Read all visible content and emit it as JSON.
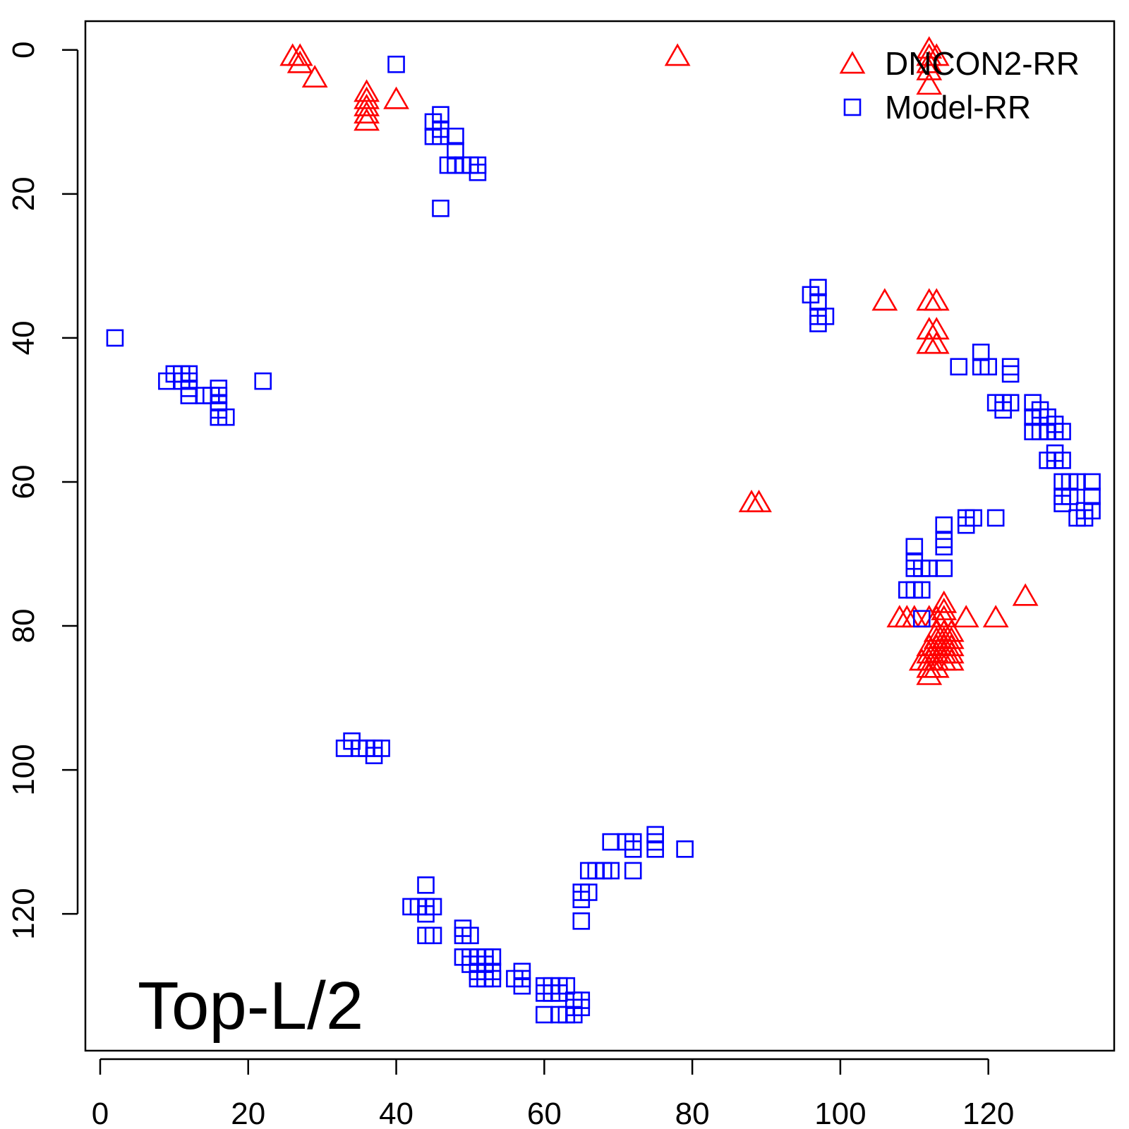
{
  "chart_data": {
    "type": "scatter",
    "title": "",
    "xlabel": "",
    "ylabel": "",
    "annotation": "Top-L/2",
    "xlim": [
      -2,
      137
    ],
    "ylim": [
      -4,
      139
    ],
    "y_reversed": true,
    "x_ticks": [
      0,
      20,
      40,
      60,
      80,
      100,
      120
    ],
    "y_ticks": [
      0,
      20,
      40,
      60,
      80,
      100,
      120
    ],
    "grid": false,
    "legend_position": "top-right",
    "series": [
      {
        "name": "DNCON2-RR",
        "marker": "triangle-open",
        "color": "#ff0000",
        "points": [
          [
            26,
            1
          ],
          [
            27,
            1
          ],
          [
            27,
            2
          ],
          [
            29,
            4
          ],
          [
            36,
            6
          ],
          [
            36,
            7
          ],
          [
            36,
            8
          ],
          [
            36,
            9
          ],
          [
            36,
            10
          ],
          [
            40,
            7
          ],
          [
            78,
            1
          ],
          [
            112,
            0
          ],
          [
            112,
            1
          ],
          [
            113,
            1
          ],
          [
            112,
            2
          ],
          [
            112,
            3
          ],
          [
            112,
            5
          ],
          [
            106,
            35
          ],
          [
            112,
            35
          ],
          [
            113,
            35
          ],
          [
            112,
            39
          ],
          [
            113,
            39
          ],
          [
            112,
            41
          ],
          [
            113,
            41
          ],
          [
            88,
            63
          ],
          [
            89,
            63
          ],
          [
            125,
            76
          ],
          [
            108,
            79
          ],
          [
            109,
            79
          ],
          [
            110,
            79
          ],
          [
            112,
            79
          ],
          [
            113,
            79
          ],
          [
            114,
            79
          ],
          [
            117,
            79
          ],
          [
            121,
            79
          ],
          [
            114,
            77
          ],
          [
            114,
            78
          ],
          [
            113,
            81
          ],
          [
            114,
            81
          ],
          [
            115,
            81
          ],
          [
            113,
            82
          ],
          [
            114,
            82
          ],
          [
            115,
            82
          ],
          [
            112,
            83
          ],
          [
            113,
            83
          ],
          [
            114,
            83
          ],
          [
            115,
            83
          ],
          [
            112,
            84
          ],
          [
            113,
            84
          ],
          [
            114,
            84
          ],
          [
            115,
            84
          ],
          [
            111,
            85
          ],
          [
            112,
            85
          ],
          [
            113,
            85
          ],
          [
            114,
            85
          ],
          [
            115,
            85
          ],
          [
            112,
            86
          ],
          [
            113,
            86
          ],
          [
            112,
            87
          ]
        ]
      },
      {
        "name": "Model-RR",
        "marker": "square-open",
        "color": "#0000ff",
        "points": [
          [
            40,
            2
          ],
          [
            45,
            10
          ],
          [
            46,
            9
          ],
          [
            46,
            11
          ],
          [
            45,
            12
          ],
          [
            46,
            12
          ],
          [
            48,
            12
          ],
          [
            48,
            14
          ],
          [
            47,
            16
          ],
          [
            48,
            16
          ],
          [
            49,
            16
          ],
          [
            50,
            16
          ],
          [
            51,
            16
          ],
          [
            51,
            17
          ],
          [
            46,
            22
          ],
          [
            2,
            40
          ],
          [
            9,
            46
          ],
          [
            10,
            45
          ],
          [
            11,
            45
          ],
          [
            11,
            46
          ],
          [
            12,
            45
          ],
          [
            12,
            46
          ],
          [
            12,
            47
          ],
          [
            12,
            48
          ],
          [
            14,
            48
          ],
          [
            15,
            48
          ],
          [
            16,
            47
          ],
          [
            16,
            48
          ],
          [
            16,
            49
          ],
          [
            16,
            50
          ],
          [
            16,
            51
          ],
          [
            17,
            51
          ],
          [
            22,
            46
          ],
          [
            96,
            34
          ],
          [
            97,
            33
          ],
          [
            97,
            35
          ],
          [
            97,
            37
          ],
          [
            97,
            38
          ],
          [
            98,
            37
          ],
          [
            116,
            44
          ],
          [
            119,
            42
          ],
          [
            119,
            44
          ],
          [
            120,
            44
          ],
          [
            123,
            44
          ],
          [
            123,
            45
          ],
          [
            121,
            49
          ],
          [
            122,
            49
          ],
          [
            123,
            49
          ],
          [
            122,
            50
          ],
          [
            126,
            49
          ],
          [
            126,
            51
          ],
          [
            126,
            53
          ],
          [
            127,
            50
          ],
          [
            127,
            51
          ],
          [
            127,
            53
          ],
          [
            128,
            51
          ],
          [
            128,
            53
          ],
          [
            129,
            52
          ],
          [
            129,
            53
          ],
          [
            130,
            53
          ],
          [
            128,
            57
          ],
          [
            129,
            56
          ],
          [
            129,
            57
          ],
          [
            130,
            57
          ],
          [
            130,
            60
          ],
          [
            131,
            60
          ],
          [
            130,
            62
          ],
          [
            130,
            63
          ],
          [
            131,
            62
          ],
          [
            132,
            60
          ],
          [
            134,
            60
          ],
          [
            134,
            62
          ],
          [
            134,
            64
          ],
          [
            133,
            64
          ],
          [
            133,
            65
          ],
          [
            132,
            65
          ],
          [
            114,
            66
          ],
          [
            114,
            68
          ],
          [
            114,
            69
          ],
          [
            114,
            72
          ],
          [
            117,
            65
          ],
          [
            117,
            66
          ],
          [
            118,
            65
          ],
          [
            121,
            65
          ],
          [
            110,
            69
          ],
          [
            110,
            71
          ],
          [
            110,
            72
          ],
          [
            111,
            72
          ],
          [
            112,
            72
          ],
          [
            109,
            75
          ],
          [
            110,
            75
          ],
          [
            111,
            75
          ],
          [
            111,
            79
          ],
          [
            34,
            96
          ],
          [
            35,
            97
          ],
          [
            33,
            97
          ],
          [
            36,
            97
          ],
          [
            37,
            97
          ],
          [
            37,
            98
          ],
          [
            38,
            97
          ],
          [
            44,
            116
          ],
          [
            42,
            119
          ],
          [
            43,
            119
          ],
          [
            44,
            119
          ],
          [
            44,
            120
          ],
          [
            45,
            119
          ],
          [
            44,
            123
          ],
          [
            45,
            123
          ],
          [
            49,
            122
          ],
          [
            49,
            123
          ],
          [
            50,
            123
          ],
          [
            49,
            126
          ],
          [
            50,
            126
          ],
          [
            50,
            127
          ],
          [
            51,
            126
          ],
          [
            52,
            126
          ],
          [
            52,
            127
          ],
          [
            53,
            126
          ],
          [
            52,
            128
          ],
          [
            53,
            128
          ],
          [
            52,
            129
          ],
          [
            53,
            129
          ],
          [
            51,
            128
          ],
          [
            51,
            129
          ],
          [
            56,
            129
          ],
          [
            57,
            128
          ],
          [
            57,
            129
          ],
          [
            57,
            130
          ],
          [
            60,
            130
          ],
          [
            60,
            131
          ],
          [
            61,
            130
          ],
          [
            61,
            131
          ],
          [
            62,
            130
          ],
          [
            62,
            131
          ],
          [
            63,
            130
          ],
          [
            64,
            132
          ],
          [
            64,
            133
          ],
          [
            65,
            132
          ],
          [
            65,
            133
          ],
          [
            60,
            134
          ],
          [
            62,
            134
          ],
          [
            63,
            134
          ],
          [
            64,
            134
          ],
          [
            65,
            117
          ],
          [
            65,
            118
          ],
          [
            65,
            121
          ],
          [
            66,
            117
          ],
          [
            66,
            114
          ],
          [
            67,
            114
          ],
          [
            68,
            114
          ],
          [
            69,
            114
          ],
          [
            69,
            110
          ],
          [
            71,
            110
          ],
          [
            72,
            110
          ],
          [
            72,
            111
          ],
          [
            72,
            114
          ],
          [
            75,
            109
          ],
          [
            75,
            110
          ],
          [
            75,
            111
          ],
          [
            79,
            111
          ]
        ]
      }
    ]
  }
}
